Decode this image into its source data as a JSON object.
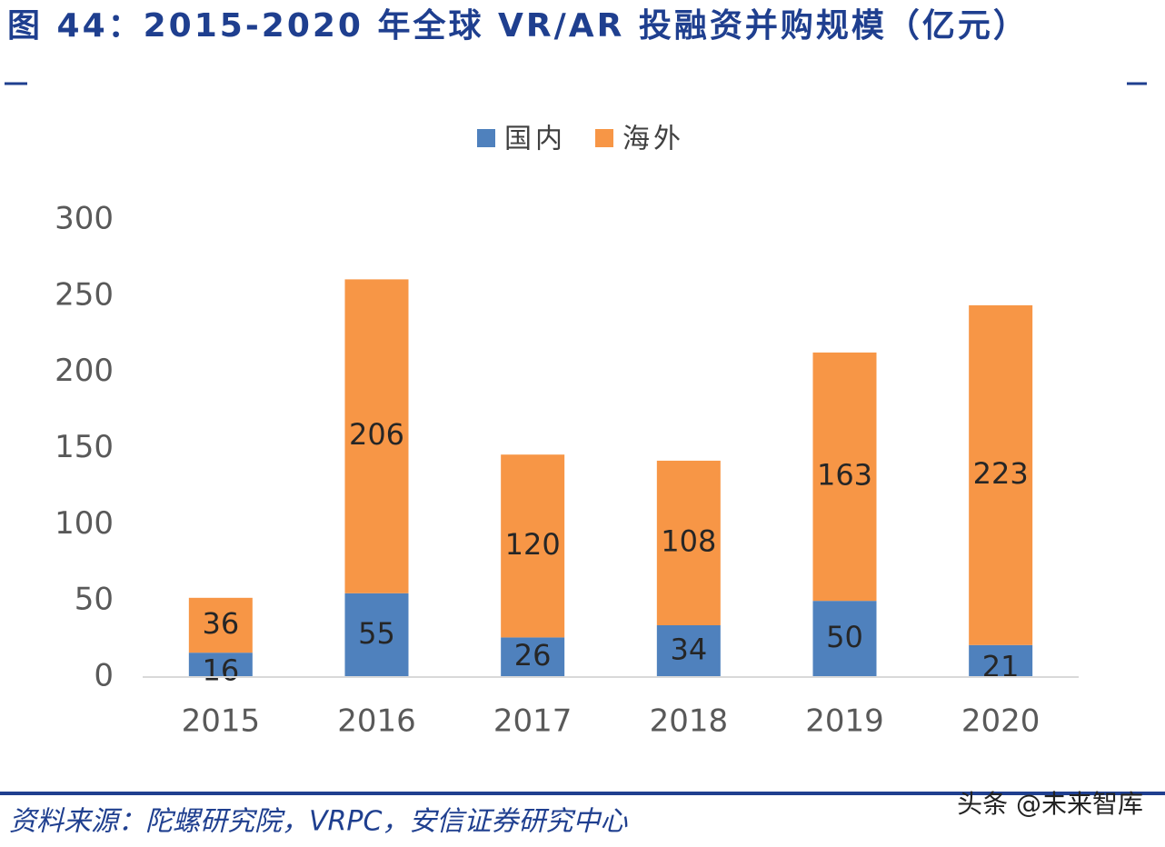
{
  "chart_data": {
    "type": "stacked_bar",
    "title": "图 44：2015-2020 年全球 VR/AR 投融资并购规模（亿元）",
    "categories": [
      "2015",
      "2016",
      "2017",
      "2018",
      "2019",
      "2020"
    ],
    "series": [
      {
        "name": "国内",
        "color": "#4f81bd",
        "values": [
          16,
          55,
          26,
          34,
          50,
          21
        ]
      },
      {
        "name": "海外",
        "color": "#f79646",
        "values": [
          36,
          206,
          120,
          108,
          163,
          223
        ]
      }
    ],
    "ylim": [
      0,
      300
    ],
    "yticks": [
      0,
      50,
      100,
      150,
      200,
      250,
      300
    ],
    "grid": false,
    "legend": "top",
    "source": "资料来源：陀螺研究院，VRPC，安信证券研究中心",
    "watermark": "头条 @未来智库"
  }
}
